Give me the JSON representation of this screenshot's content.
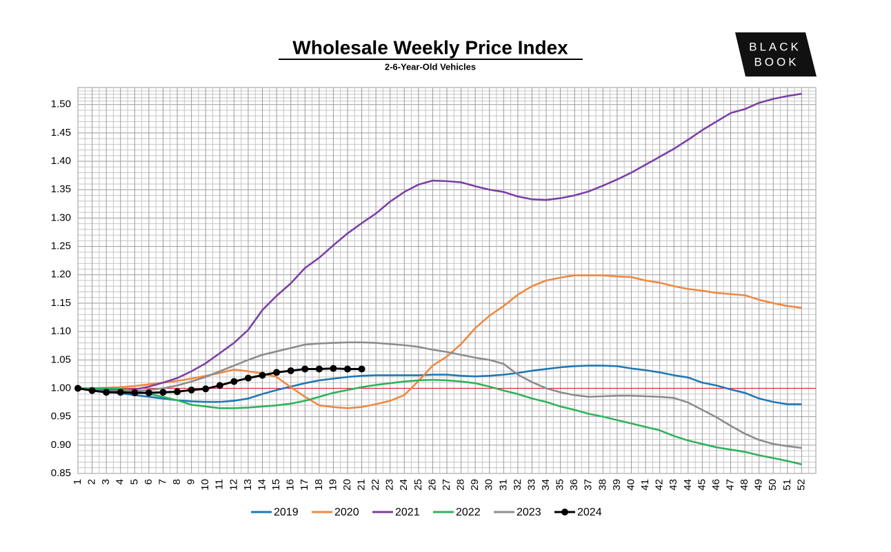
{
  "chart_data": {
    "type": "line",
    "title": "Wholesale Weekly Price Index",
    "subtitle": "2-6-Year-Old Vehicles",
    "logo": [
      "BLACK",
      "BOOK"
    ],
    "x": [
      1,
      2,
      3,
      4,
      5,
      6,
      7,
      8,
      9,
      10,
      11,
      12,
      13,
      14,
      15,
      16,
      17,
      18,
      19,
      20,
      21,
      22,
      23,
      24,
      25,
      26,
      27,
      28,
      29,
      30,
      31,
      32,
      33,
      34,
      35,
      36,
      37,
      38,
      39,
      40,
      41,
      42,
      43,
      44,
      45,
      46,
      47,
      48,
      49,
      50,
      51,
      52
    ],
    "xlim": [
      1,
      53
    ],
    "xticks": [
      1,
      2,
      3,
      4,
      5,
      6,
      7,
      8,
      9,
      10,
      11,
      12,
      13,
      14,
      15,
      16,
      17,
      18,
      19,
      20,
      21,
      22,
      23,
      24,
      25,
      26,
      27,
      28,
      29,
      30,
      31,
      32,
      33,
      34,
      35,
      36,
      37,
      38,
      39,
      40,
      41,
      42,
      43,
      44,
      45,
      46,
      47,
      48,
      49,
      50,
      51,
      52
    ],
    "ylim": [
      0.85,
      1.53
    ],
    "yticks": [
      0.85,
      {
        "value": 0.9,
        "label": "0.90"
      },
      0.95,
      {
        "value": 1,
        "label": "1.00"
      },
      1.05,
      {
        "value": 1.1,
        "label": "1.10"
      },
      1.15,
      {
        "value": 1.2,
        "label": "1.20"
      },
      1.25,
      {
        "value": 1.3,
        "label": "1.30"
      },
      1.35,
      {
        "value": 1.4,
        "label": "1.40"
      },
      1.45,
      {
        "value": 1.5,
        "label": "1.50"
      }
    ],
    "grid": true,
    "reference_line": {
      "value": 1,
      "color": "#e8262b"
    },
    "legend": "bottom",
    "series": [
      {
        "name": "2019",
        "color": "#1f77b4",
        "values": [
          1.0,
          0.997,
          0.994,
          0.991,
          0.988,
          0.985,
          0.982,
          0.979,
          0.977,
          0.976,
          0.976,
          0.978,
          0.982,
          0.99,
          0.997,
          1.003,
          1.009,
          1.014,
          1.017,
          1.02,
          1.022,
          1.023,
          1.023,
          1.023,
          1.023,
          1.024,
          1.024,
          1.022,
          1.021,
          1.022,
          1.024,
          1.027,
          1.031,
          1.034,
          1.037,
          1.039,
          1.04,
          1.04,
          1.039,
          1.035,
          1.032,
          1.028,
          1.023,
          1.019,
          1.01,
          1.005,
          0.998,
          0.992,
          0.982,
          0.976,
          0.972,
          0.972
        ]
      },
      {
        "name": "2020",
        "color": "#f0883e",
        "values": [
          1.0,
          1.0,
          1.001,
          1.002,
          1.004,
          1.007,
          1.01,
          1.013,
          1.017,
          1.022,
          1.027,
          1.033,
          1.03,
          1.026,
          1.02,
          1.002,
          0.985,
          0.97,
          0.967,
          0.965,
          0.967,
          0.972,
          0.978,
          0.988,
          1.013,
          1.04,
          1.056,
          1.078,
          1.106,
          1.128,
          1.145,
          1.165,
          1.18,
          1.19,
          1.195,
          1.199,
          1.199,
          1.199,
          1.197,
          1.196,
          1.19,
          1.186,
          1.18,
          1.175,
          1.172,
          1.168,
          1.166,
          1.164,
          1.156,
          1.15,
          1.145,
          1.142
        ]
      },
      {
        "name": "2021",
        "color": "#7b3fa6",
        "values": [
          1.0,
          0.998,
          0.997,
          0.997,
          0.998,
          1.003,
          1.01,
          1.018,
          1.03,
          1.044,
          1.062,
          1.08,
          1.103,
          1.138,
          1.163,
          1.185,
          1.212,
          1.23,
          1.252,
          1.273,
          1.291,
          1.308,
          1.329,
          1.346,
          1.359,
          1.366,
          1.365,
          1.363,
          1.356,
          1.35,
          1.346,
          1.338,
          1.333,
          1.332,
          1.335,
          1.34,
          1.347,
          1.357,
          1.368,
          1.38,
          1.394,
          1.408,
          1.422,
          1.438,
          1.455,
          1.47,
          1.485,
          1.492,
          1.503,
          1.51,
          1.515,
          1.519
        ]
      },
      {
        "name": "2022",
        "color": "#2cb35a",
        "values": [
          1.0,
          1.0,
          1.0,
          0.999,
          0.995,
          0.99,
          0.985,
          0.979,
          0.971,
          0.968,
          0.965,
          0.965,
          0.966,
          0.968,
          0.97,
          0.973,
          0.978,
          0.985,
          0.992,
          0.997,
          1.002,
          1.006,
          1.009,
          1.012,
          1.014,
          1.015,
          1.014,
          1.012,
          1.009,
          1.003,
          0.996,
          0.99,
          0.982,
          0.976,
          0.968,
          0.962,
          0.955,
          0.95,
          0.944,
          0.938,
          0.932,
          0.926,
          0.916,
          0.908,
          0.902,
          0.896,
          0.892,
          0.888,
          0.882,
          0.877,
          0.872,
          0.866
        ]
      },
      {
        "name": "2023",
        "color": "#8c8c8c",
        "values": [
          1.0,
          0.997,
          0.995,
          0.995,
          0.995,
          0.997,
          1.0,
          1.005,
          1.012,
          1.02,
          1.03,
          1.04,
          1.05,
          1.059,
          1.065,
          1.071,
          1.077,
          1.079,
          1.08,
          1.081,
          1.081,
          1.08,
          1.078,
          1.076,
          1.073,
          1.068,
          1.064,
          1.059,
          1.054,
          1.05,
          1.043,
          1.024,
          1.011,
          1.0,
          0.993,
          0.988,
          0.985,
          0.986,
          0.987,
          0.987,
          0.986,
          0.985,
          0.983,
          0.975,
          0.962,
          0.949,
          0.934,
          0.92,
          0.909,
          0.902,
          0.898,
          0.895
        ]
      },
      {
        "name": "2024",
        "color": "#000000",
        "markers": true,
        "values": [
          1.0,
          0.996,
          0.993,
          0.993,
          0.992,
          0.992,
          0.993,
          0.994,
          0.997,
          0.999,
          1.005,
          1.012,
          1.018,
          1.023,
          1.028,
          1.031,
          1.034,
          1.034,
          1.035,
          1.034,
          1.034,
          null,
          null,
          null,
          null,
          null,
          null,
          null,
          null,
          null,
          null,
          null,
          null,
          null,
          null,
          null,
          null,
          null,
          null,
          null,
          null,
          null,
          null,
          null,
          null,
          null,
          null,
          null,
          null,
          null,
          null,
          null
        ]
      }
    ]
  }
}
